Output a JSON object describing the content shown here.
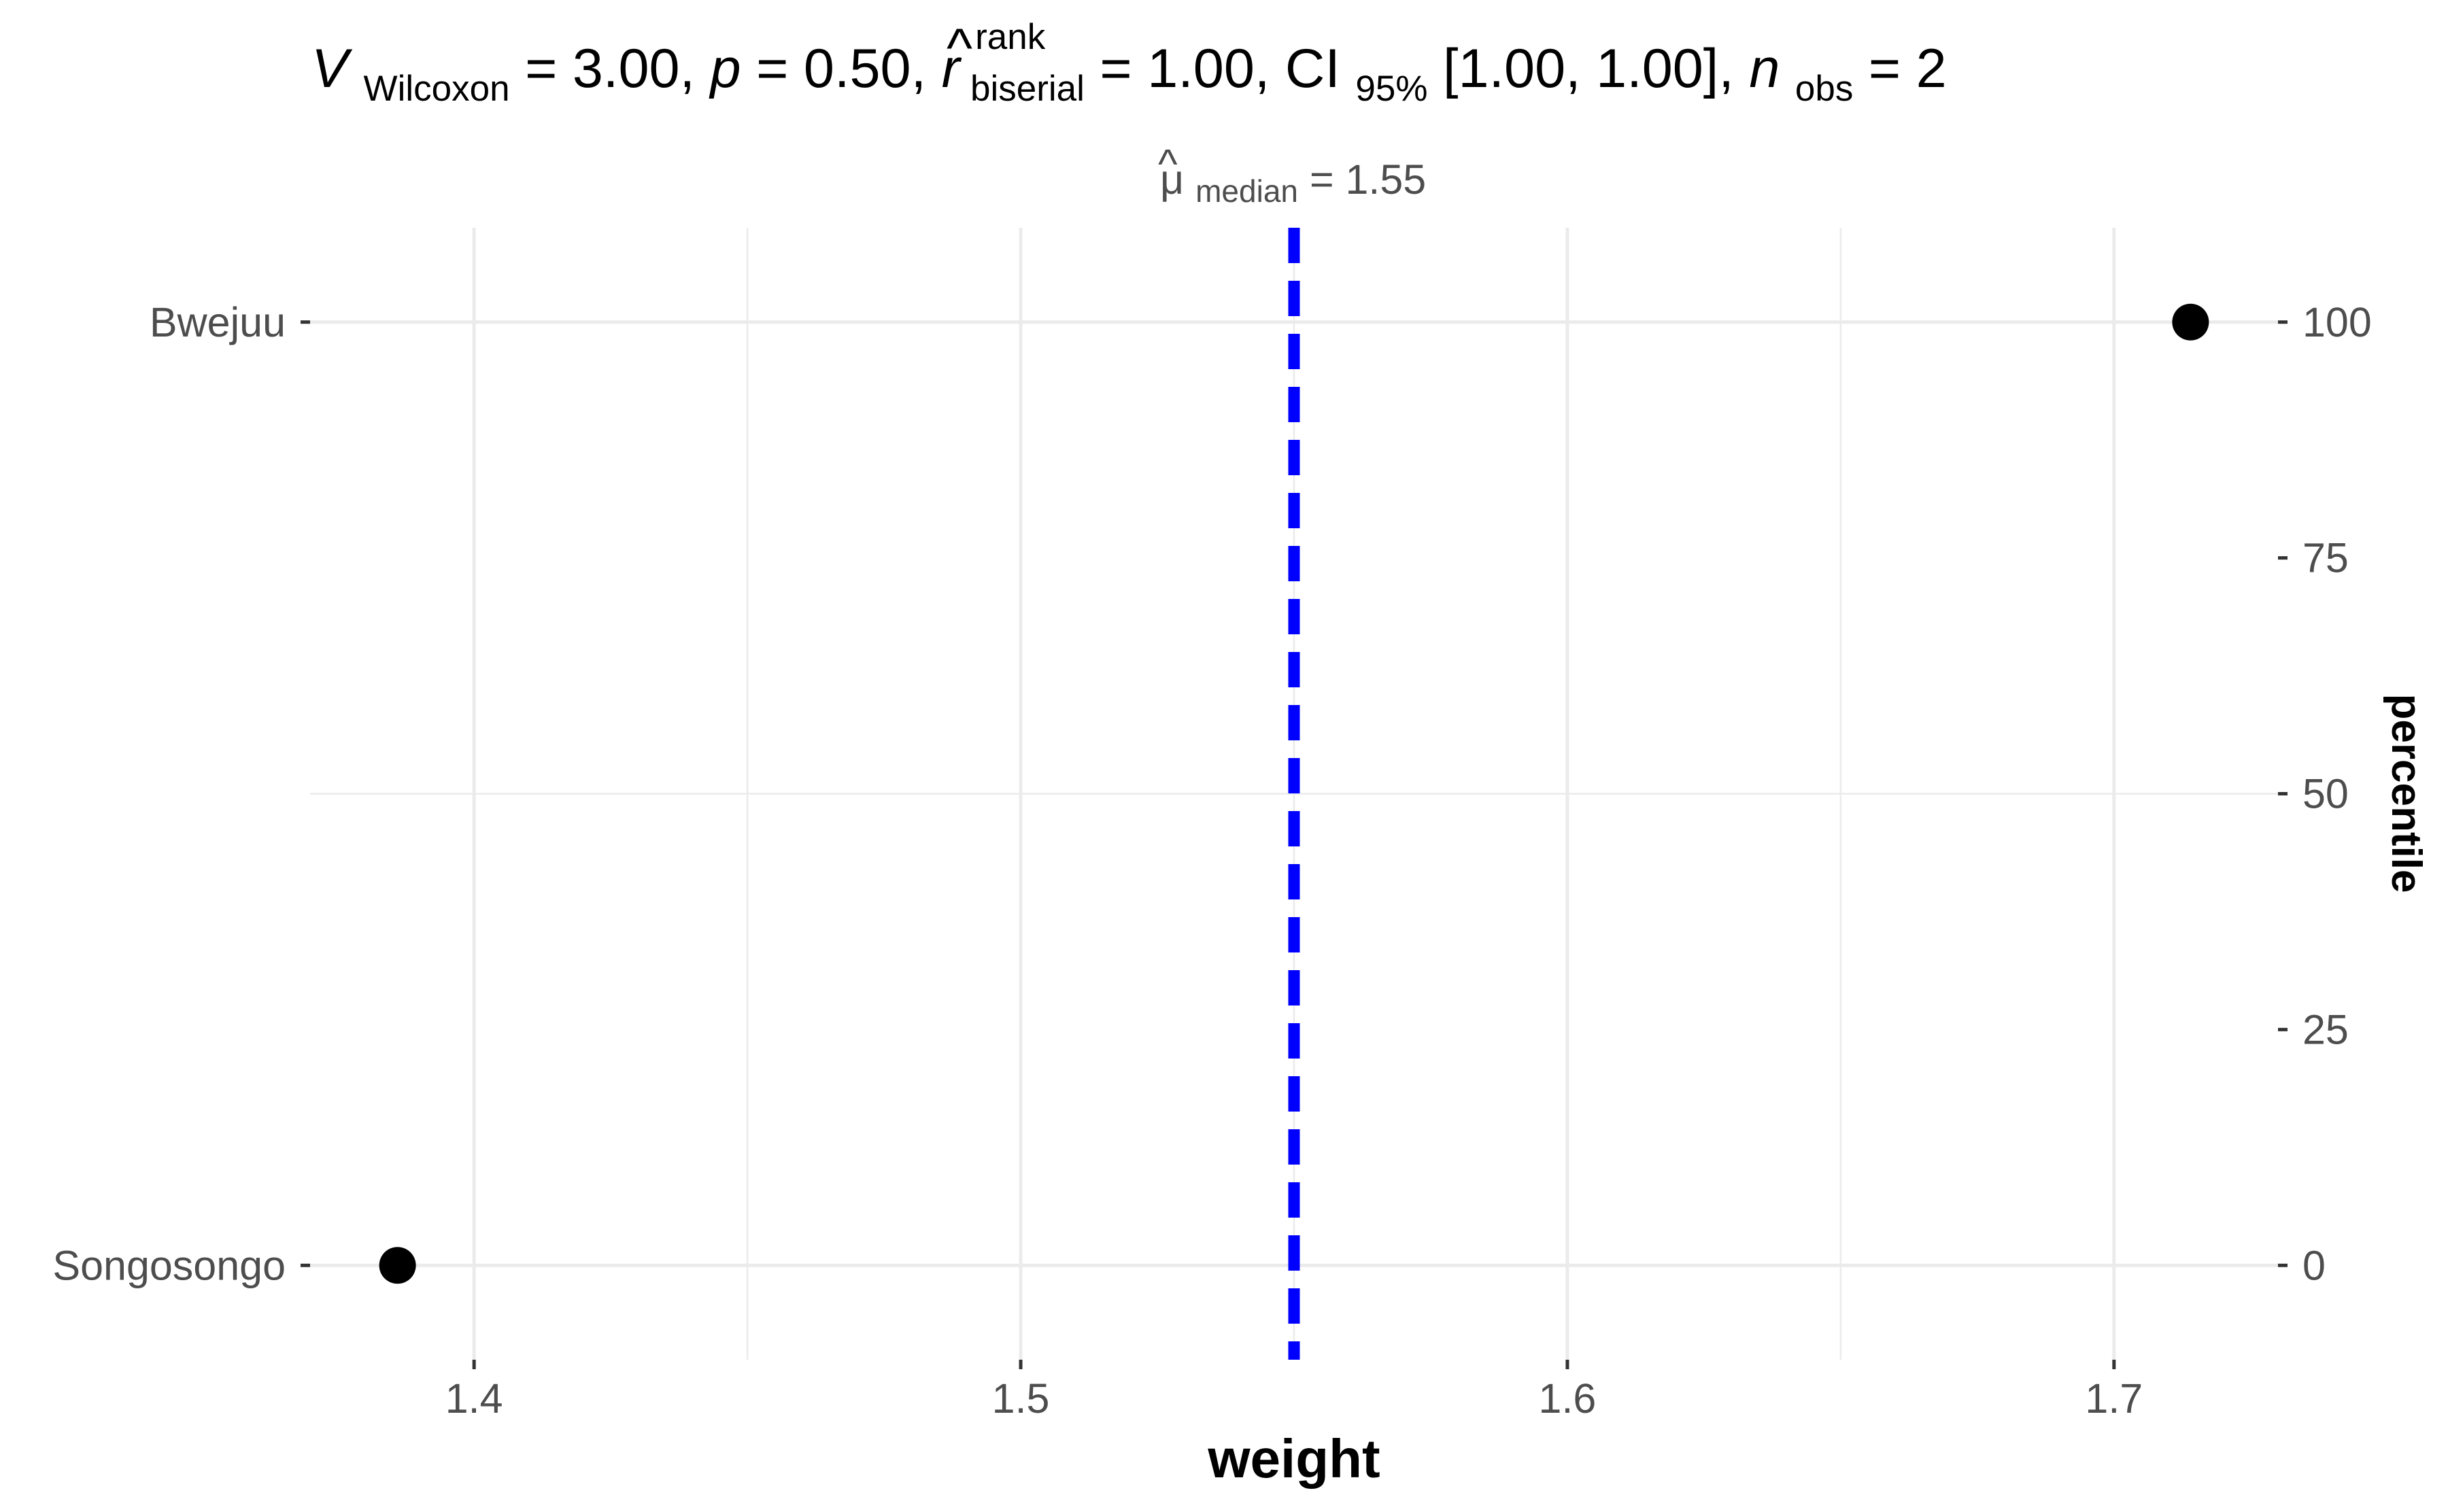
{
  "chart_data": {
    "type": "scatter",
    "title": {
      "V": "V",
      "V_sub": "Wilcoxon",
      "eq1": " = 3.00, ",
      "p": "p",
      "eq2": " = 0.50, ",
      "r": "r",
      "r_hat": "^",
      "r_sup": "rank",
      "r_sub": "biserial",
      "eq3": " = 1.00, CI",
      "ci_sub": "95%",
      "eq4": " [1.00, 1.00], ",
      "n": "n",
      "n_sub": "obs",
      "eq5": " = 2"
    },
    "xlabel": "weight",
    "ylabel_right": "percentile",
    "xlim": [
      1.37,
      1.73
    ],
    "ylim": [
      -10,
      110
    ],
    "x_ticks": [
      1.4,
      1.5,
      1.6,
      1.7
    ],
    "x_tick_labels": [
      "1.4",
      "1.5",
      "1.6",
      "1.7"
    ],
    "x_minor_ticks": [
      1.45,
      1.55,
      1.65
    ],
    "y_left_ticks": [
      0,
      100
    ],
    "y_left_labels": [
      "Songosongo",
      "Bwejuu"
    ],
    "y_right_ticks": [
      0,
      25,
      50,
      75,
      100
    ],
    "y_right_labels": [
      "0",
      "25",
      "50",
      "75",
      "100"
    ],
    "points": [
      {
        "label": "Songosongo",
        "x": 1.386,
        "y": 0
      },
      {
        "label": "Bwejuu",
        "x": 1.714,
        "y": 100
      }
    ],
    "median_line": {
      "x": 1.55,
      "label_mu": "μ",
      "label_hat": "^",
      "label_sub": "median",
      "label_rest": " = 1.55",
      "color": "#0000ff"
    },
    "point_color": "#000000",
    "grid": true,
    "background": "#ffffff"
  }
}
